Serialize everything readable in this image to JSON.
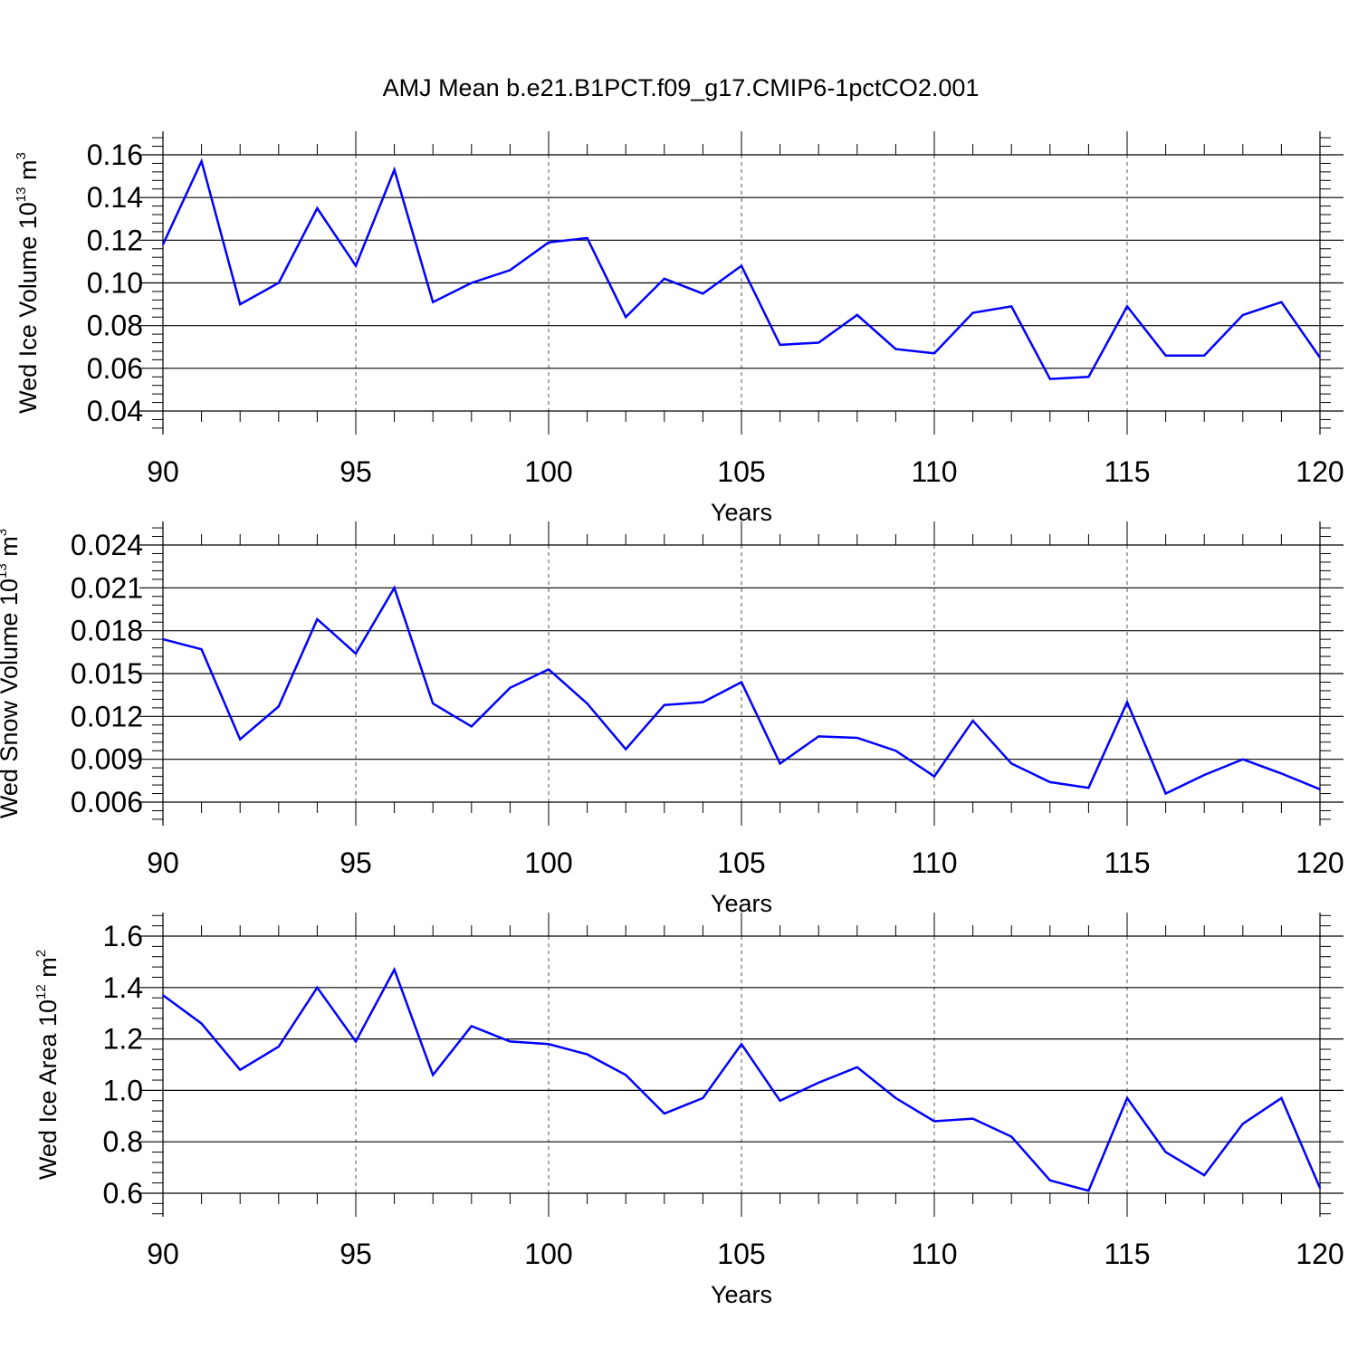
{
  "title": "AMJ Mean b.e21.B1PCT.f09_g17.CMIP6-1pctCO2.001",
  "colors": {
    "line": "#0000ff",
    "axis": "#000000",
    "grid": "#555555"
  },
  "chart_data": [
    {
      "type": "line",
      "ylabel_main": "Wed Ice Volume 10",
      "ylabel_exp": "13",
      "ylabel_unit": " m",
      "ylabel_unit_exp": "3",
      "xlabel": "Years",
      "xlim": [
        90,
        120
      ],
      "ylim": [
        0.04,
        0.16
      ],
      "xticks": [
        "90",
        "95",
        "100",
        "105",
        "110",
        "115",
        "120"
      ],
      "yticks": [
        "0.04",
        "0.06",
        "0.08",
        "0.10",
        "0.12",
        "0.14",
        "0.16"
      ],
      "x": [
        90,
        91,
        92,
        93,
        94,
        95,
        96,
        97,
        98,
        99,
        100,
        101,
        102,
        103,
        104,
        105,
        106,
        107,
        108,
        109,
        110,
        111,
        112,
        113,
        114,
        115,
        116,
        117,
        118,
        119,
        120
      ],
      "values": [
        0.118,
        0.157,
        0.09,
        0.1,
        0.135,
        0.108,
        0.153,
        0.091,
        0.1,
        0.106,
        0.119,
        0.121,
        0.084,
        0.102,
        0.095,
        0.108,
        0.071,
        0.072,
        0.085,
        0.069,
        0.067,
        0.086,
        0.089,
        0.055,
        0.056,
        0.089,
        0.066,
        0.066,
        0.085,
        0.091,
        0.065
      ]
    },
    {
      "type": "line",
      "ylabel_main": "Wed Snow Volume 10",
      "ylabel_exp": "13",
      "ylabel_unit": " m",
      "ylabel_unit_exp": "3",
      "xlabel": "Years",
      "xlim": [
        90,
        120
      ],
      "ylim": [
        0.006,
        0.024
      ],
      "xticks": [
        "90",
        "95",
        "100",
        "105",
        "110",
        "115",
        "120"
      ],
      "yticks": [
        "0.006",
        "0.009",
        "0.012",
        "0.015",
        "0.018",
        "0.021",
        "0.024"
      ],
      "x": [
        90,
        91,
        92,
        93,
        94,
        95,
        96,
        97,
        98,
        99,
        100,
        101,
        102,
        103,
        104,
        105,
        106,
        107,
        108,
        109,
        110,
        111,
        112,
        113,
        114,
        115,
        116,
        117,
        118,
        119,
        120
      ],
      "values": [
        0.0174,
        0.0167,
        0.0104,
        0.0127,
        0.0188,
        0.0164,
        0.021,
        0.0129,
        0.0113,
        0.014,
        0.0153,
        0.0129,
        0.0097,
        0.0128,
        0.013,
        0.0144,
        0.0087,
        0.0106,
        0.0105,
        0.0096,
        0.0078,
        0.0117,
        0.0087,
        0.0074,
        0.007,
        0.013,
        0.0066,
        0.0079,
        0.009,
        0.008,
        0.0069
      ]
    },
    {
      "type": "line",
      "ylabel_main": "Wed Ice Area 10",
      "ylabel_exp": "12",
      "ylabel_unit": " m",
      "ylabel_unit_exp": "2",
      "xlabel": "Years",
      "xlim": [
        90,
        120
      ],
      "ylim": [
        0.6,
        1.6
      ],
      "xticks": [
        "90",
        "95",
        "100",
        "105",
        "110",
        "115",
        "120"
      ],
      "yticks": [
        "0.6",
        "0.8",
        "1.0",
        "1.2",
        "1.4",
        "1.6"
      ],
      "x": [
        90,
        91,
        92,
        93,
        94,
        95,
        96,
        97,
        98,
        99,
        100,
        101,
        102,
        103,
        104,
        105,
        106,
        107,
        108,
        109,
        110,
        111,
        112,
        113,
        114,
        115,
        116,
        117,
        118,
        119,
        120
      ],
      "values": [
        1.37,
        1.26,
        1.08,
        1.17,
        1.4,
        1.19,
        1.47,
        1.06,
        1.25,
        1.19,
        1.18,
        1.14,
        1.06,
        0.91,
        0.97,
        1.18,
        0.96,
        1.03,
        1.09,
        0.97,
        0.88,
        0.89,
        0.82,
        0.65,
        0.61,
        0.97,
        0.76,
        0.67,
        0.87,
        0.97,
        0.62
      ]
    }
  ]
}
